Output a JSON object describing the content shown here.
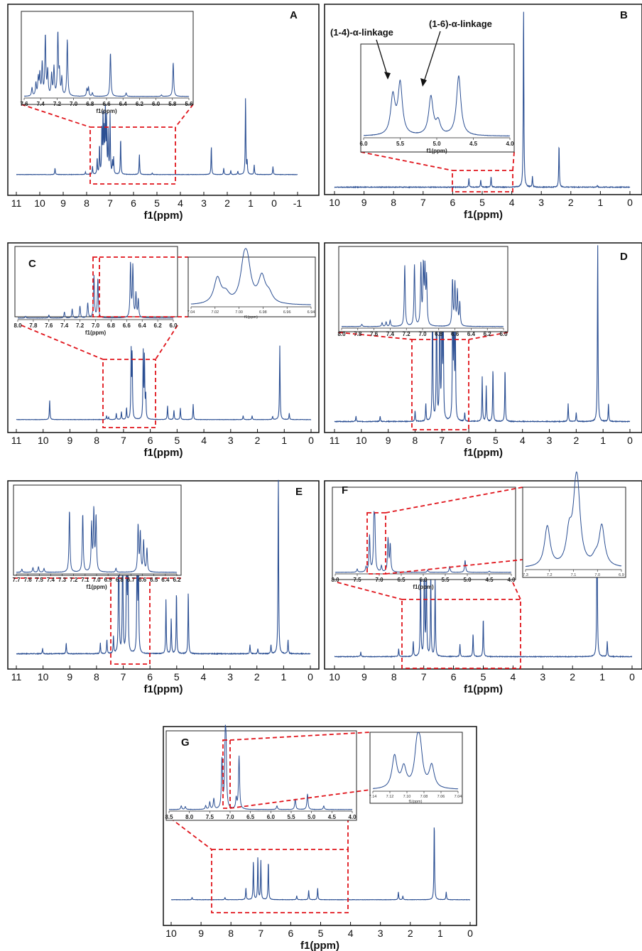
{
  "chart_data": [
    {
      "type": "line",
      "panel": "A",
      "xlabel": "f1(ppm)",
      "xticks": [
        "11",
        "10",
        "9",
        "8",
        "7",
        "6",
        "5",
        "4",
        "3",
        "2",
        "1",
        "0",
        "-1"
      ],
      "xlim": [
        11,
        -1
      ],
      "peaks": [
        [
          9.35,
          0.08
        ],
        [
          8.05,
          0.03
        ],
        [
          7.75,
          0.1
        ],
        [
          7.55,
          0.2
        ],
        [
          7.45,
          0.35
        ],
        [
          7.35,
          0.55
        ],
        [
          7.3,
          0.7
        ],
        [
          7.25,
          0.5
        ],
        [
          7.2,
          0.78
        ],
        [
          7.15,
          0.65
        ],
        [
          7.08,
          0.5
        ],
        [
          7.0,
          0.72
        ],
        [
          6.9,
          0.15
        ],
        [
          6.85,
          0.2
        ],
        [
          6.55,
          0.45
        ],
        [
          5.75,
          0.25
        ],
        [
          5.2,
          0.02
        ],
        [
          2.68,
          0.35
        ],
        [
          2.15,
          0.08
        ],
        [
          1.85,
          0.05
        ],
        [
          1.55,
          0.04
        ],
        [
          1.22,
          0.95
        ],
        [
          1.15,
          0.15
        ],
        [
          0.85,
          0.12
        ],
        [
          0.05,
          0.1
        ]
      ],
      "zoom": {
        "xticks": [
          "7.6",
          "7.4",
          "7.2",
          "7.0",
          "6.8",
          "6.6",
          "6.4",
          "6.2",
          "6.0",
          "5.8",
          "5.6"
        ],
        "xlim": [
          7.65,
          5.55
        ],
        "xlabel": "f1(ppm)",
        "peaks": [
          [
            7.55,
            0.12
          ],
          [
            7.5,
            0.18
          ],
          [
            7.47,
            0.25
          ],
          [
            7.45,
            0.3
          ],
          [
            7.42,
            0.45
          ],
          [
            7.38,
            0.85
          ],
          [
            7.35,
            0.35
          ],
          [
            7.3,
            0.3
          ],
          [
            7.27,
            0.4
          ],
          [
            7.22,
            0.88
          ],
          [
            7.2,
            0.3
          ],
          [
            7.17,
            0.25
          ],
          [
            7.1,
            0.8
          ],
          [
            6.85,
            0.1
          ],
          [
            6.83,
            0.12
          ],
          [
            6.78,
            0.05
          ],
          [
            6.55,
            0.62
          ],
          [
            6.35,
            0.05
          ],
          [
            5.9,
            0.02
          ],
          [
            5.75,
            0.48
          ]
        ]
      }
    },
    {
      "type": "line",
      "panel": "B",
      "xlabel": "f1(ppm)",
      "xticks": [
        "10",
        "9",
        "8",
        "7",
        "6",
        "5",
        "4",
        "3",
        "2",
        "1",
        "0"
      ],
      "xlim": [
        10,
        0
      ],
      "peaks": [
        [
          5.45,
          0.05
        ],
        [
          5.05,
          0.04
        ],
        [
          4.7,
          0.06
        ],
        [
          3.6,
          1.0
        ],
        [
          3.3,
          0.06
        ],
        [
          2.4,
          0.24
        ],
        [
          1.1,
          0.01
        ]
      ],
      "zoom": {
        "xticks": [
          "6.0",
          "5.5",
          "5.0",
          "4.5",
          "4.0"
        ],
        "xlim": [
          6.0,
          4.0
        ],
        "xlabel": "f1(ppm)",
        "peaks": [
          [
            5.6,
            0.45
          ],
          [
            5.5,
            0.6
          ],
          [
            5.08,
            0.45
          ],
          [
            4.98,
            0.15
          ],
          [
            4.7,
            0.7
          ]
        ],
        "annotations": [
          "(1-4)-α-linkage",
          "(1-6)-α-linkage"
        ]
      }
    },
    {
      "type": "line",
      "panel": "C",
      "xlabel": "f1(ppm)",
      "xticks": [
        "11",
        "10",
        "9",
        "8",
        "7",
        "6",
        "5",
        "4",
        "3",
        "2",
        "1",
        "0"
      ],
      "xlim": [
        11.5,
        0
      ],
      "peaks": [
        [
          10.2,
          0.25
        ],
        [
          7.98,
          0.05
        ],
        [
          7.9,
          0.03
        ],
        [
          7.6,
          0.08
        ],
        [
          7.4,
          0.1
        ],
        [
          7.2,
          0.15
        ],
        [
          7.02,
          0.85
        ],
        [
          6.98,
          0.82
        ],
        [
          6.55,
          0.85
        ],
        [
          6.5,
          0.8
        ],
        [
          6.45,
          0.3
        ],
        [
          5.6,
          0.18
        ],
        [
          5.35,
          0.12
        ],
        [
          5.1,
          0.15
        ],
        [
          4.6,
          0.2
        ],
        [
          2.65,
          0.05
        ],
        [
          2.3,
          0.05
        ],
        [
          1.5,
          0.04
        ],
        [
          1.22,
          0.95
        ],
        [
          0.85,
          0.08
        ]
      ],
      "zoom": {
        "xticks": [
          "8.0",
          "7.8",
          "7.6",
          "7.4",
          "7.2",
          "7.0",
          "6.8",
          "6.6",
          "6.4",
          "6.2",
          "6.0"
        ],
        "xlim": [
          8.0,
          6.0
        ],
        "xlabel": "f1(ppm)",
        "peaks": [
          [
            7.9,
            0.03
          ],
          [
            7.6,
            0.05
          ],
          [
            7.4,
            0.1
          ],
          [
            7.3,
            0.15
          ],
          [
            7.2,
            0.2
          ],
          [
            7.1,
            0.25
          ],
          [
            7.02,
            0.7
          ],
          [
            6.97,
            0.65
          ],
          [
            6.55,
            0.9
          ],
          [
            6.52,
            0.85
          ],
          [
            6.48,
            0.4
          ],
          [
            6.45,
            0.3
          ]
        ]
      },
      "zoom2": {
        "xticks": [
          "7.04",
          "7.02",
          "7.00",
          "6.98",
          "6.96",
          "6.94"
        ],
        "xlim": [
          7.04,
          6.94
        ],
        "xlabel": "f1(ppm)",
        "peaks": [
          [
            7.018,
            0.6
          ],
          [
            7.011,
            0.2
          ],
          [
            6.996,
            0.75
          ],
          [
            6.993,
            0.75
          ],
          [
            6.981,
            0.6
          ],
          [
            6.975,
            0.2
          ]
        ]
      }
    },
    {
      "type": "line",
      "panel": "D",
      "xlabel": "f1(ppm)",
      "xticks": [
        "11",
        "10",
        "9",
        "8",
        "7",
        "6",
        "5",
        "4",
        "3",
        "2",
        "1",
        "0"
      ],
      "xlim": [
        11,
        0
      ],
      "peaks": [
        [
          10.2,
          0.03
        ],
        [
          9.3,
          0.03
        ],
        [
          8.0,
          0.06
        ],
        [
          7.6,
          0.1
        ],
        [
          7.35,
          0.8
        ],
        [
          7.2,
          0.85
        ],
        [
          7.08,
          0.85
        ],
        [
          7.0,
          0.8
        ],
        [
          6.95,
          0.6
        ],
        [
          6.6,
          0.8
        ],
        [
          6.55,
          0.7
        ],
        [
          6.5,
          0.5
        ],
        [
          6.15,
          0.05
        ],
        [
          5.5,
          0.25
        ],
        [
          5.35,
          0.2
        ],
        [
          5.1,
          0.3
        ],
        [
          4.65,
          0.3
        ],
        [
          2.3,
          0.1
        ],
        [
          2.0,
          0.05
        ],
        [
          1.2,
          1.0
        ],
        [
          0.8,
          0.1
        ]
      ],
      "zoom": {
        "xticks": [
          "8.0",
          "7.8",
          "7.6",
          "7.4",
          "7.2",
          "7.0",
          "6.8",
          "6.6",
          "6.4",
          "6.2",
          "6.0"
        ],
        "xlim": [
          8.0,
          6.0
        ],
        "xlabel": "",
        "peaks": [
          [
            7.75,
            0.03
          ],
          [
            7.5,
            0.05
          ],
          [
            7.45,
            0.06
          ],
          [
            7.4,
            0.08
          ],
          [
            7.22,
            0.8
          ],
          [
            7.1,
            0.8
          ],
          [
            7.02,
            0.78
          ],
          [
            6.99,
            0.75
          ],
          [
            6.97,
            0.7
          ],
          [
            6.95,
            0.6
          ],
          [
            6.63,
            0.6
          ],
          [
            6.6,
            0.55
          ],
          [
            6.57,
            0.45
          ],
          [
            6.54,
            0.3
          ]
        ]
      }
    },
    {
      "type": "line",
      "panel": "E",
      "xlabel": "f1(ppm)",
      "xticks": [
        "11",
        "10",
        "9",
        "8",
        "7",
        "6",
        "5",
        "4",
        "3",
        "2",
        "1",
        "0"
      ],
      "xlim": [
        11.2,
        0
      ],
      "peaks": [
        [
          10.2,
          0.03
        ],
        [
          9.3,
          0.06
        ],
        [
          8.0,
          0.06
        ],
        [
          7.75,
          0.08
        ],
        [
          7.5,
          0.1
        ],
        [
          7.3,
          0.85
        ],
        [
          7.15,
          0.8
        ],
        [
          7.0,
          0.8
        ],
        [
          6.95,
          0.6
        ],
        [
          6.6,
          0.7
        ],
        [
          6.55,
          0.6
        ],
        [
          5.5,
          0.3
        ],
        [
          5.3,
          0.2
        ],
        [
          5.1,
          0.35
        ],
        [
          4.65,
          0.35
        ],
        [
          2.3,
          0.05
        ],
        [
          2.0,
          0.03
        ],
        [
          1.5,
          0.05
        ],
        [
          1.22,
          1.0
        ],
        [
          0.85,
          0.08
        ]
      ],
      "zoom": {
        "xticks": [
          "7.7",
          "7.6",
          "7.5",
          "7.4",
          "7.3",
          "7.2",
          "7.1",
          "7.0",
          "6.9",
          "6.8",
          "6.7",
          "6.6",
          "6.5",
          "6.4",
          "6.2"
        ],
        "xlim": [
          7.7,
          6.25
        ],
        "xlabel": "f1(ppm)",
        "peaks": [
          [
            7.65,
            0.04
          ],
          [
            7.55,
            0.06
          ],
          [
            7.5,
            0.07
          ],
          [
            7.45,
            0.05
          ],
          [
            7.22,
            0.8
          ],
          [
            7.1,
            0.75
          ],
          [
            7.02,
            0.6
          ],
          [
            7.0,
            0.78
          ],
          [
            6.98,
            0.7
          ],
          [
            6.8,
            0.05
          ],
          [
            6.6,
            0.6
          ],
          [
            6.58,
            0.5
          ],
          [
            6.55,
            0.4
          ],
          [
            6.52,
            0.3
          ]
        ]
      }
    },
    {
      "type": "line",
      "panel": "F",
      "xlabel": "f1(ppm)",
      "xticks": [
        "10",
        "9",
        "8",
        "7",
        "6",
        "5",
        "4",
        "3",
        "2",
        "1",
        "0"
      ],
      "xlim": [
        10.2,
        0
      ],
      "peaks": [
        [
          9.3,
          0.03
        ],
        [
          8.0,
          0.05
        ],
        [
          7.5,
          0.1
        ],
        [
          7.25,
          0.6
        ],
        [
          7.12,
          0.7
        ],
        [
          7.05,
          0.65
        ],
        [
          6.9,
          0.55
        ],
        [
          6.75,
          0.5
        ],
        [
          5.9,
          0.08
        ],
        [
          5.45,
          0.15
        ],
        [
          5.1,
          0.25
        ],
        [
          1.2,
          1.0
        ],
        [
          0.85,
          0.1
        ]
      ],
      "zoom": {
        "xticks": [
          "8.0",
          "7.5",
          "7.0",
          "6.5",
          "6.0",
          "5.5",
          "5.0",
          "4.5",
          "4.0"
        ],
        "xlim": [
          8.0,
          4.0
        ],
        "xlabel": "f1(ppm)",
        "peaks": [
          [
            7.5,
            0.05
          ],
          [
            7.3,
            0.08
          ],
          [
            7.22,
            0.6
          ],
          [
            7.12,
            0.75
          ],
          [
            7.1,
            0.7
          ],
          [
            6.95,
            0.1
          ],
          [
            6.8,
            0.55
          ],
          [
            6.75,
            0.45
          ],
          [
            5.9,
            0.04
          ],
          [
            5.4,
            0.1
          ],
          [
            5.05,
            0.2
          ],
          [
            4.5,
            0.02
          ]
        ]
      },
      "zoom2": {
        "xticks": [
          "7.3",
          "7.2",
          "7.1",
          "7.0",
          "6.9"
        ],
        "xlim": [
          7.32,
          6.88
        ],
        "xlabel": "",
        "peaks": [
          [
            7.22,
            0.6
          ],
          [
            7.12,
            0.45
          ],
          [
            7.09,
            0.75
          ],
          [
            7.08,
            0.72
          ],
          [
            7.0,
            0.1
          ],
          [
            6.97,
            0.6
          ]
        ]
      }
    },
    {
      "type": "line",
      "panel": "G",
      "xlabel": "f1(ppm)",
      "xticks": [
        "10",
        "9",
        "8",
        "7",
        "6",
        "5",
        "4",
        "3",
        "2",
        "1",
        "0"
      ],
      "xlim": [
        10,
        0
      ],
      "peaks": [
        [
          9.3,
          0.03
        ],
        [
          8.2,
          0.03
        ],
        [
          7.5,
          0.15
        ],
        [
          7.25,
          0.5
        ],
        [
          7.1,
          0.55
        ],
        [
          7.0,
          0.5
        ],
        [
          6.75,
          0.5
        ],
        [
          5.8,
          0.05
        ],
        [
          5.4,
          0.12
        ],
        [
          5.1,
          0.15
        ],
        [
          2.4,
          0.1
        ],
        [
          2.25,
          0.05
        ],
        [
          1.2,
          1.0
        ],
        [
          0.8,
          0.1
        ]
      ],
      "zoom": {
        "xticks": [
          "8.5",
          "8.0",
          "7.5",
          "7.0",
          "6.5",
          "6.0",
          "5.5",
          "5.0",
          "4.5",
          "4.0"
        ],
        "xlim": [
          8.5,
          4.0
        ],
        "xlabel": "",
        "peaks": [
          [
            8.2,
            0.05
          ],
          [
            8.1,
            0.04
          ],
          [
            7.6,
            0.05
          ],
          [
            7.5,
            0.1
          ],
          [
            7.4,
            0.15
          ],
          [
            7.2,
            0.7
          ],
          [
            7.12,
            0.85
          ],
          [
            7.1,
            0.75
          ],
          [
            6.85,
            0.15
          ],
          [
            6.78,
            0.75
          ],
          [
            5.85,
            0.05
          ],
          [
            5.4,
            0.15
          ],
          [
            5.1,
            0.22
          ],
          [
            4.7,
            0.05
          ]
        ]
      },
      "zoom2": {
        "xticks": [
          "7.14",
          "7.12",
          "7.10",
          "7.08",
          "7.06",
          "7.04"
        ],
        "xlim": [
          7.145,
          7.035
        ],
        "xlabel": "f1(ppm)",
        "peaks": [
          [
            7.117,
            0.65
          ],
          [
            7.105,
            0.4
          ],
          [
            7.088,
            0.72
          ],
          [
            7.084,
            0.68
          ],
          [
            7.069,
            0.45
          ]
        ]
      }
    }
  ]
}
